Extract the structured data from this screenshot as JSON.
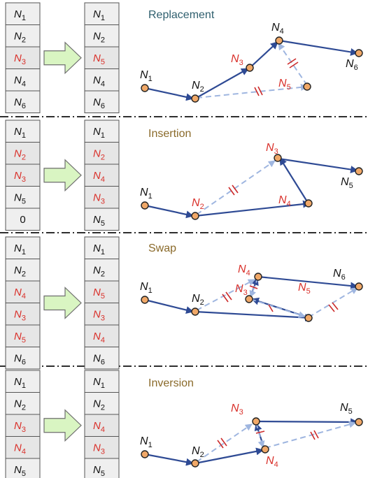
{
  "panels": [
    {
      "title": "Replacement",
      "title_color": "#2f5f6e",
      "before": [
        {
          "base": "N",
          "sub": "1",
          "red": false
        },
        {
          "base": "N",
          "sub": "2",
          "red": false
        },
        {
          "base": "N",
          "sub": "3",
          "red": true
        },
        {
          "base": "N",
          "sub": "4",
          "red": false
        },
        {
          "base": "N",
          "sub": "6",
          "red": false
        }
      ],
      "after": [
        {
          "base": "N",
          "sub": "1",
          "red": false
        },
        {
          "base": "N",
          "sub": "2",
          "red": false
        },
        {
          "base": "N",
          "sub": "5",
          "red": true
        },
        {
          "base": "N",
          "sub": "4",
          "red": false
        },
        {
          "base": "N",
          "sub": "6",
          "red": false
        }
      ],
      "nodes": [
        {
          "id": "N1",
          "base": "N",
          "sub": "1",
          "red": false
        },
        {
          "id": "N2",
          "base": "N",
          "sub": "2",
          "red": false
        },
        {
          "id": "N3",
          "base": "N",
          "sub": "3",
          "red": true
        },
        {
          "id": "N4",
          "base": "N",
          "sub": "4",
          "red": false
        },
        {
          "id": "N5",
          "base": "N",
          "sub": "5",
          "red": true
        },
        {
          "id": "N6",
          "base": "N",
          "sub": "6",
          "red": false
        }
      ]
    },
    {
      "title": "Insertion",
      "title_color": "#8a6a2a",
      "before": [
        {
          "base": "N",
          "sub": "1",
          "red": false
        },
        {
          "base": "N",
          "sub": "2",
          "red": true
        },
        {
          "base": "N",
          "sub": "3",
          "red": true
        },
        {
          "base": "N",
          "sub": "5",
          "red": false
        },
        {
          "base": "0",
          "sub": "",
          "red": false
        }
      ],
      "after": [
        {
          "base": "N",
          "sub": "1",
          "red": false
        },
        {
          "base": "N",
          "sub": "2",
          "red": true
        },
        {
          "base": "N",
          "sub": "4",
          "red": true
        },
        {
          "base": "N",
          "sub": "3",
          "red": true
        },
        {
          "base": "N",
          "sub": "5",
          "red": false
        }
      ],
      "nodes": [
        {
          "id": "N1",
          "base": "N",
          "sub": "1",
          "red": false
        },
        {
          "id": "N2",
          "base": "N",
          "sub": "2",
          "red": true
        },
        {
          "id": "N3",
          "base": "N",
          "sub": "3",
          "red": true
        },
        {
          "id": "N4",
          "base": "N",
          "sub": "4",
          "red": true
        },
        {
          "id": "N5",
          "base": "N",
          "sub": "5",
          "red": false
        }
      ]
    },
    {
      "title": "Swap",
      "title_color": "#8a6a2a",
      "before": [
        {
          "base": "N",
          "sub": "1",
          "red": false
        },
        {
          "base": "N",
          "sub": "2",
          "red": false
        },
        {
          "base": "N",
          "sub": "4",
          "red": true
        },
        {
          "base": "N",
          "sub": "3",
          "red": true
        },
        {
          "base": "N",
          "sub": "5",
          "red": true
        },
        {
          "base": "N",
          "sub": "6",
          "red": false
        }
      ],
      "after": [
        {
          "base": "N",
          "sub": "1",
          "red": false
        },
        {
          "base": "N",
          "sub": "2",
          "red": false
        },
        {
          "base": "N",
          "sub": "5",
          "red": true
        },
        {
          "base": "N",
          "sub": "3",
          "red": true
        },
        {
          "base": "N",
          "sub": "4",
          "red": true
        },
        {
          "base": "N",
          "sub": "6",
          "red": false
        }
      ],
      "nodes": [
        {
          "id": "N1",
          "base": "N",
          "sub": "1",
          "red": false
        },
        {
          "id": "N2",
          "base": "N",
          "sub": "2",
          "red": false
        },
        {
          "id": "N4",
          "base": "N",
          "sub": "4",
          "red": true
        },
        {
          "id": "N3",
          "base": "N",
          "sub": "3",
          "red": true
        },
        {
          "id": "N5",
          "base": "N",
          "sub": "5",
          "red": true
        },
        {
          "id": "N6",
          "base": "N",
          "sub": "6",
          "red": false
        }
      ]
    },
    {
      "title": "Inversion",
      "title_color": "#8a6a2a",
      "before": [
        {
          "base": "N",
          "sub": "1",
          "red": false
        },
        {
          "base": "N",
          "sub": "2",
          "red": false
        },
        {
          "base": "N",
          "sub": "3",
          "red": true
        },
        {
          "base": "N",
          "sub": "4",
          "red": true
        },
        {
          "base": "N",
          "sub": "5",
          "red": false
        }
      ],
      "after": [
        {
          "base": "N",
          "sub": "1",
          "red": false
        },
        {
          "base": "N",
          "sub": "2",
          "red": false
        },
        {
          "base": "N",
          "sub": "4",
          "red": true
        },
        {
          "base": "N",
          "sub": "3",
          "red": true
        },
        {
          "base": "N",
          "sub": "5",
          "red": false
        }
      ],
      "nodes": [
        {
          "id": "N1",
          "base": "N",
          "sub": "1",
          "red": false
        },
        {
          "id": "N2",
          "base": "N",
          "sub": "2",
          "red": false
        },
        {
          "id": "N3",
          "base": "N",
          "sub": "3",
          "red": true
        },
        {
          "id": "N4",
          "base": "N",
          "sub": "4",
          "red": true
        },
        {
          "id": "N5",
          "base": "N",
          "sub": "5",
          "red": false
        }
      ]
    }
  ],
  "colors": {
    "highlight_text": "#d9302a",
    "solid_edge": "#2e4a94",
    "dashed_edge": "#9fb6e0",
    "node_fill": "#f0a868",
    "arrow_fill": "#d9f5c2"
  }
}
